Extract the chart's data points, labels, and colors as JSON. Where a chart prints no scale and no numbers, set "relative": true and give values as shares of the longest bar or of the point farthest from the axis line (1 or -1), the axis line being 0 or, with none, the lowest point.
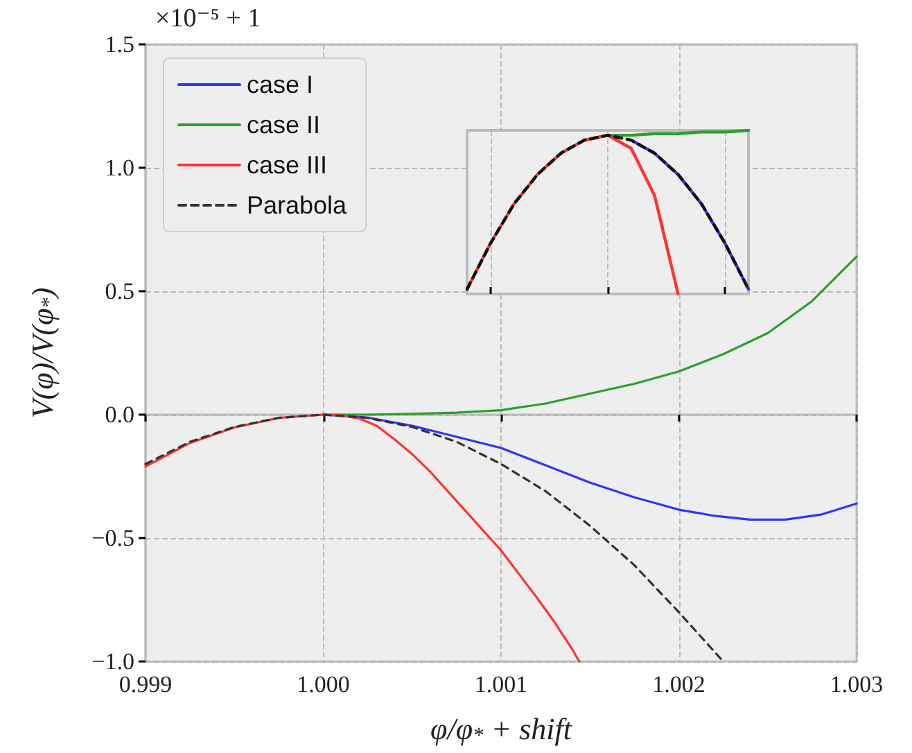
{
  "chart_data": [
    {
      "type": "line",
      "xlabel": "φ/φ$_{*}$ + shift",
      "ylabel": "V(φ)/V(φ$_{*}$)",
      "annotations": [
        "×10⁻⁵ + 1"
      ],
      "xlim": [
        0.999,
        1.003
      ],
      "xticks": [
        0.999,
        {
          "value": 1,
          "label": "1.000"
        },
        1.001,
        1.002,
        1.003
      ],
      "ylim": [
        -1,
        1.5
      ],
      "yticks": [
        {
          "value": -1,
          "label": "−1.0"
        },
        {
          "value": -0.5,
          "label": "−0.5"
        },
        {
          "value": 0,
          "label": "0.0"
        },
        0.5,
        {
          "value": 1,
          "label": "1.0"
        },
        1.5
      ],
      "grid": true,
      "legend": "top left",
      "marker": "none",
      "series": [
        {
          "name": "case I",
          "color": "#3333ff",
          "x": [
            1.0,
            1.00025,
            1.0005,
            1.00075,
            1.001,
            1.00125,
            1.0015,
            1.00175,
            1.002,
            1.0022,
            1.0024,
            1.0026,
            1.0028,
            1.003
          ],
          "values": [
            0,
            -0.012,
            -0.045,
            -0.09,
            -0.135,
            -0.205,
            -0.275,
            -0.335,
            -0.385,
            -0.41,
            -0.425,
            -0.425,
            -0.405,
            -0.36
          ]
        },
        {
          "name": "case II",
          "color": "#2ca02c",
          "x": [
            1.0,
            1.00025,
            1.0005,
            1.00075,
            1.001,
            1.00125,
            1.0015,
            1.00175,
            1.002,
            1.00225,
            1.0025,
            1.00275,
            1.003
          ],
          "values": [
            0,
            0.0,
            0.003,
            0.008,
            0.018,
            0.045,
            0.085,
            0.125,
            0.175,
            0.245,
            0.33,
            0.46,
            0.64
          ]
        },
        {
          "name": "case III",
          "color": "#ff3333",
          "x": [
            0.999,
            0.99925,
            0.9995,
            0.99975,
            1.0,
            1.0001,
            1.0002,
            1.0003,
            1.0004,
            1.0005,
            1.0006,
            1.0007,
            1.0008,
            1.0009,
            1.001,
            1.0011,
            1.0012,
            1.0013,
            1.0014,
            1.00144
          ],
          "values": [
            -0.21,
            -0.115,
            -0.052,
            -0.013,
            0,
            -0.003,
            -0.015,
            -0.045,
            -0.1,
            -0.16,
            -0.23,
            -0.31,
            -0.39,
            -0.47,
            -0.55,
            -0.645,
            -0.74,
            -0.84,
            -0.95,
            -1.0
          ]
        },
        {
          "name": "Parabola",
          "color": "#333333",
          "line_style": "dashed",
          "x": [
            0.999,
            0.99925,
            0.9995,
            0.99975,
            1.0,
            1.00025,
            1.0005,
            1.00075,
            1.001,
            1.00125,
            1.0015,
            1.00175,
            1.002,
            1.00225
          ],
          "values": [
            -0.2,
            -0.11,
            -0.05,
            -0.013,
            0,
            -0.013,
            -0.05,
            -0.11,
            -0.2,
            -0.31,
            -0.45,
            -0.61,
            -0.8,
            -1.0
          ]
        }
      ]
    },
    {
      "type": "line",
      "relative": true,
      "categories": [
        null,
        null,
        null,
        null,
        null,
        null,
        null,
        null,
        null,
        null,
        null,
        null,
        null
      ],
      "grid": "x",
      "marker": "none",
      "series": [
        {
          "color": "#3333ff",
          "values": [
            null,
            null,
            null,
            null,
            null,
            null,
            null,
            0.94,
            0.86,
            0.73,
            0.55,
            0.31,
            0.03
          ]
        },
        {
          "color": "#2ca02c",
          "values": [
            null,
            null,
            null,
            null,
            null,
            0.94,
            0.97,
            0.97,
            0.98,
            0.98,
            0.99,
            0.99,
            1.0
          ]
        },
        {
          "color": "#ff3333",
          "values": [
            0.03,
            0.31,
            0.55,
            0.73,
            0.86,
            0.94,
            0.97,
            0.89,
            0.6,
            0.0,
            null,
            null,
            null
          ]
        },
        {
          "color": "#111111",
          "line_style": "dashed",
          "values": [
            0.03,
            0.31,
            0.55,
            0.73,
            0.86,
            0.94,
            0.97,
            0.94,
            0.86,
            0.73,
            0.55,
            0.31,
            0.03
          ]
        }
      ]
    }
  ]
}
